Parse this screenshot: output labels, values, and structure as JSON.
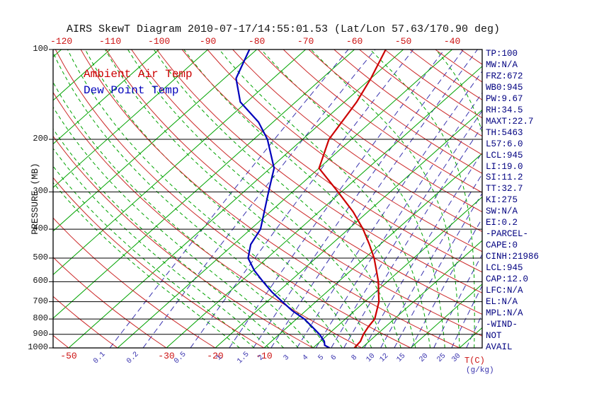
{
  "title": "AIRS SkewT Diagram 2010-07-17/14:55:01.53 (Lat/Lon 57.63/170.90 deg)",
  "legend": {
    "ambient": "Ambient Air Temp",
    "dewpoint": "Dew Point Temp"
  },
  "axes": {
    "pressure_label": "PRESSURE (MB)",
    "pressure_ticks": [
      100,
      200,
      300,
      400,
      500,
      600,
      700,
      800,
      900,
      1000
    ],
    "top_temp_ticks": [
      -120,
      -110,
      -100,
      -90,
      -80,
      -70,
      -60,
      -50,
      -40
    ],
    "bottom_temp_ticks": [
      -50,
      -30,
      -20,
      -10
    ],
    "mixing_ticks": [
      0.1,
      0.2,
      0.5,
      1,
      1.5,
      2,
      3,
      4,
      5,
      6,
      8,
      10,
      12,
      15,
      20,
      25,
      30
    ],
    "temp_unit": "T(C)",
    "mixing_unit": "(g/kg)"
  },
  "panel": [
    "TP:100",
    "MW:N/A",
    "FRZ:672",
    "WB0:945",
    "PW:9.67",
    "RH:34.5",
    "MAXT:22.7",
    "TH:5463",
    "L57:6.0",
    "LCL:945",
    "LI:19.0",
    "SI:11.2",
    "TT:32.7",
    "KI:275",
    "SW:N/A",
    "EI:0.2",
    "-PARCEL-",
    "CAPE:0",
    "CINH:21986",
    "LCL:945",
    "CAP:12.0",
    "LFC:N/A",
    "EL:N/A",
    "MPL:N/A",
    "-WIND-",
    "NOT",
    "AVAIL"
  ],
  "colors": {
    "isotherm": "#00A300",
    "moist_adiabat": "#00A300",
    "dry_adiabat": "#CC2929",
    "mixing_ratio": "#3933AE",
    "temp_curve": "#CC0000",
    "dewpoint_curve": "#0000BB",
    "axis_text_temp": "#CC1111",
    "axis_text_mixing": "#3933AE",
    "frame": "#000000",
    "panel_text": "#000080",
    "title_text": "#141414",
    "pressure_text": "#141414"
  },
  "chart_data": {
    "type": "line",
    "subtype": "skew-t-log-p",
    "title": "AIRS SkewT Diagram 2010-07-17/14:55:01.53 (Lat/Lon 57.63/170.90 deg)",
    "xlabel": "T(C)",
    "ylabel": "PRESSURE (MB)",
    "pressure_range_mb": [
      100,
      1000
    ],
    "top_axis_temps_c": [
      -120,
      -110,
      -100,
      -90,
      -80,
      -70,
      -60,
      -50,
      -40
    ],
    "series": [
      {
        "name": "Ambient Air Temp",
        "color": "#CC0000",
        "points_p_mb_t_c": [
          [
            1000,
            8.5
          ],
          [
            950,
            8.2
          ],
          [
            900,
            7.2
          ],
          [
            850,
            6.5
          ],
          [
            800,
            6.0
          ],
          [
            750,
            4.5
          ],
          [
            700,
            2.9
          ],
          [
            650,
            0.6
          ],
          [
            600,
            -1.8
          ],
          [
            550,
            -4.8
          ],
          [
            500,
            -8.1
          ],
          [
            450,
            -12.2
          ],
          [
            400,
            -17.0
          ],
          [
            350,
            -23.0
          ],
          [
            300,
            -30.7
          ],
          [
            250,
            -40.0
          ],
          [
            200,
            -44.6
          ],
          [
            150,
            -47.5
          ],
          [
            125,
            -50.0
          ],
          [
            100,
            -53.6
          ]
        ]
      },
      {
        "name": "Dew Point Temp",
        "color": "#0000BB",
        "points_p_mb_t_c": [
          [
            1000,
            3.4
          ],
          [
            980,
            1.8
          ],
          [
            950,
            0.8
          ],
          [
            900,
            -1.8
          ],
          [
            850,
            -5.0
          ],
          [
            800,
            -8.4
          ],
          [
            750,
            -12.8
          ],
          [
            700,
            -16.9
          ],
          [
            650,
            -21.2
          ],
          [
            600,
            -25.4
          ],
          [
            550,
            -29.8
          ],
          [
            500,
            -33.9
          ],
          [
            450,
            -36.5
          ],
          [
            400,
            -38.0
          ],
          [
            350,
            -41.2
          ],
          [
            300,
            -44.9
          ],
          [
            250,
            -49.2
          ],
          [
            200,
            -57.2
          ],
          [
            175,
            -63.0
          ],
          [
            150,
            -71.3
          ],
          [
            125,
            -77.6
          ],
          [
            100,
            -81.5
          ]
        ]
      }
    ],
    "background": {
      "isotherms_c": [
        -120,
        -110,
        -100,
        -90,
        -80,
        -70,
        -60,
        -50,
        -40,
        -30,
        -20,
        -10,
        0,
        10,
        20,
        30
      ],
      "dry_adiabats_theta_c": [
        -50,
        -40,
        -30,
        -20,
        -10,
        0,
        10,
        20,
        30,
        40,
        50,
        60,
        70,
        80,
        90,
        100,
        110,
        120,
        130,
        140,
        150,
        160,
        170,
        180,
        190
      ],
      "moist_adiabats_thetaw_c": [
        -15,
        -12,
        -9,
        -6,
        -3,
        0,
        3,
        6,
        9,
        12,
        15,
        18,
        21,
        24,
        27,
        30,
        33,
        36
      ],
      "mixing_ratio_lines_g_kg": [
        0.1,
        0.2,
        0.5,
        1,
        1.5,
        2,
        3,
        4,
        5,
        6,
        8,
        10,
        12,
        15,
        20,
        25,
        30
      ]
    }
  }
}
